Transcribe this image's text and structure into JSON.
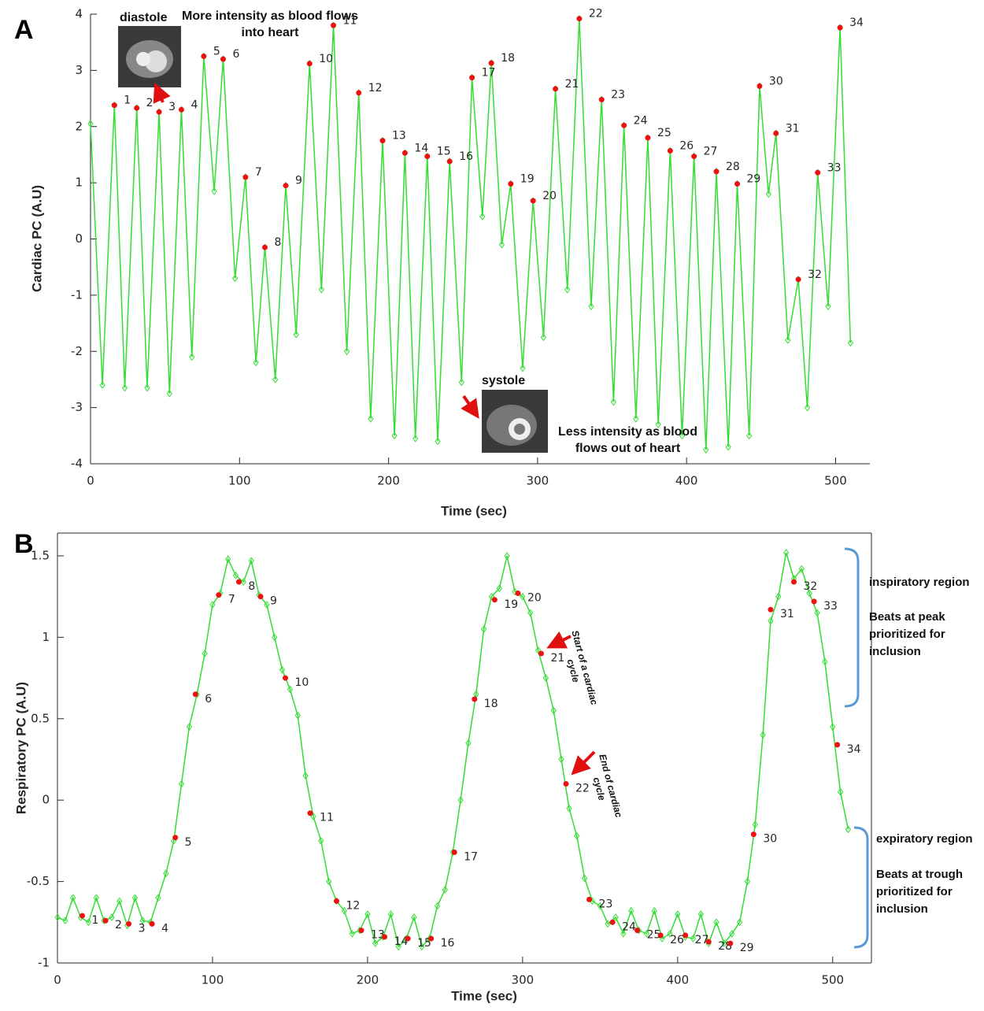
{
  "chart_data": [
    {
      "type": "line",
      "panel_label": "A",
      "xlabel": "Time (sec)",
      "ylabel": "Cardiac PC (A.U)",
      "xlim": [
        0,
        523
      ],
      "ylim": [
        -4,
        4
      ],
      "xticks": [
        0,
        100,
        200,
        300,
        400,
        500
      ],
      "yticks": [
        -4,
        -3,
        -2,
        -1,
        0,
        1,
        2,
        3,
        4
      ],
      "annotations": [
        "diastole",
        "More intensity as blood flows into heart",
        "systole",
        "Less intensity as blood flows out of heart"
      ],
      "series": [
        {
          "color": "#33dd33",
          "marker": "diamond",
          "x": [
            0,
            8,
            16,
            23,
            31,
            38,
            46,
            53,
            61,
            68,
            76,
            83,
            89,
            97,
            104,
            111,
            117,
            124,
            131,
            138,
            147,
            155,
            163,
            172,
            180,
            188,
            196,
            204,
            211,
            218,
            226,
            233,
            241,
            249,
            256,
            263,
            269,
            276,
            282,
            290,
            297,
            304,
            312,
            320,
            328,
            336,
            343,
            351,
            358,
            366,
            374,
            381,
            389,
            397,
            405,
            413,
            420,
            428,
            434,
            442,
            449,
            455,
            460,
            468,
            475,
            481,
            488,
            495,
            503,
            510
          ],
          "values": [
            2.05,
            -2.6,
            2.38,
            -2.65,
            2.33,
            -2.65,
            2.26,
            -2.75,
            2.3,
            -2.1,
            3.25,
            0.85,
            3.2,
            -0.7,
            1.1,
            -2.2,
            -0.15,
            -2.5,
            0.95,
            -1.7,
            3.12,
            -0.9,
            3.8,
            -2.0,
            2.6,
            -3.2,
            1.75,
            -3.5,
            1.53,
            -3.55,
            1.47,
            -3.6,
            1.38,
            -2.55,
            2.87,
            0.4,
            3.13,
            -0.1,
            0.98,
            -2.3,
            0.68,
            -1.75,
            2.67,
            -0.9,
            3.92,
            -1.2,
            2.48,
            -2.9,
            2.02,
            -3.2,
            1.8,
            -3.3,
            1.57,
            -3.5,
            1.47,
            -3.75,
            1.2,
            -3.7,
            0.98,
            -3.5,
            2.72,
            0.8,
            1.88,
            -1.8,
            -0.72,
            -3.0,
            1.18,
            -1.2,
            3.76,
            -1.85
          ]
        },
        {
          "color": "#ee1111",
          "marker": "dot",
          "x": [
            16,
            31,
            46,
            61,
            76,
            89,
            104,
            117,
            131,
            147,
            163,
            180,
            196,
            211,
            226,
            241,
            256,
            269,
            282,
            297,
            312,
            328,
            343,
            358,
            374,
            389,
            405,
            420,
            434,
            449,
            460,
            475,
            488,
            503
          ],
          "values": [
            2.38,
            2.33,
            2.26,
            2.3,
            3.25,
            3.2,
            1.1,
            -0.15,
            0.95,
            3.12,
            3.8,
            2.6,
            1.75,
            1.53,
            1.47,
            1.38,
            2.87,
            3.13,
            0.98,
            0.68,
            2.67,
            3.92,
            2.48,
            2.02,
            1.8,
            1.57,
            1.47,
            1.2,
            0.98,
            2.72,
            1.88,
            -0.72,
            1.18,
            3.76
          ],
          "point_labels": [
            "1",
            "2",
            "3",
            "4",
            "5",
            "6",
            "7",
            "8",
            "9",
            "10",
            "11",
            "12",
            "13",
            "14",
            "15",
            "16",
            "17",
            "18",
            "19",
            "20",
            "21",
            "22",
            "23",
            "24",
            "25",
            "26",
            "27",
            "28",
            "29",
            "30",
            "31",
            "32",
            "33",
            "34"
          ]
        }
      ]
    },
    {
      "type": "line",
      "panel_label": "B",
      "xlabel": "Time (sec)",
      "ylabel": "Respiratory PC (A.U)",
      "xlim": [
        0,
        525
      ],
      "ylim": [
        -1,
        1.64
      ],
      "xticks": [
        0,
        100,
        200,
        300,
        400,
        500
      ],
      "yticks": [
        -1,
        -0.5,
        0,
        0.5,
        1,
        1.5
      ],
      "annotations": [
        "Start of a cardiac cycle",
        "End of cardiac cycle",
        "inspiratory region",
        "Beats at peak prioritized for inclusion",
        "expiratory region",
        "Beats at trough prioritized for inclusion"
      ],
      "series": [
        {
          "color": "#33dd33",
          "marker": "diamond",
          "x": [
            0,
            5,
            10,
            15,
            20,
            25,
            30,
            35,
            40,
            45,
            50,
            55,
            60,
            65,
            70,
            75,
            80,
            85,
            90,
            95,
            100,
            105,
            110,
            115,
            120,
            125,
            130,
            135,
            140,
            145,
            150,
            155,
            160,
            165,
            170,
            175,
            180,
            185,
            190,
            195,
            200,
            205,
            210,
            215,
            220,
            225,
            230,
            235,
            240,
            245,
            250,
            255,
            260,
            265,
            270,
            275,
            280,
            285,
            290,
            295,
            300,
            305,
            310,
            315,
            320,
            325,
            330,
            335,
            340,
            345,
            350,
            355,
            360,
            365,
            370,
            375,
            380,
            385,
            390,
            395,
            400,
            405,
            410,
            415,
            420,
            425,
            430,
            435,
            440,
            445,
            450,
            455,
            460,
            465,
            470,
            475,
            480,
            485,
            490,
            495,
            500,
            505,
            510
          ],
          "values": [
            -0.72,
            -0.74,
            -0.6,
            -0.72,
            -0.75,
            -0.6,
            -0.74,
            -0.72,
            -0.62,
            -0.77,
            -0.6,
            -0.74,
            -0.75,
            -0.6,
            -0.45,
            -0.25,
            0.1,
            0.45,
            0.65,
            0.9,
            1.2,
            1.27,
            1.48,
            1.38,
            1.34,
            1.47,
            1.26,
            1.2,
            1.0,
            0.8,
            0.68,
            0.52,
            0.15,
            -0.1,
            -0.25,
            -0.5,
            -0.62,
            -0.68,
            -0.82,
            -0.8,
            -0.7,
            -0.88,
            -0.84,
            -0.7,
            -0.9,
            -0.85,
            -0.72,
            -0.9,
            -0.85,
            -0.65,
            -0.55,
            -0.32,
            0.0,
            0.35,
            0.65,
            1.05,
            1.25,
            1.3,
            1.5,
            1.28,
            1.25,
            1.15,
            0.92,
            0.75,
            0.55,
            0.25,
            -0.05,
            -0.22,
            -0.48,
            -0.62,
            -0.65,
            -0.76,
            -0.72,
            -0.82,
            -0.68,
            -0.8,
            -0.82,
            -0.68,
            -0.85,
            -0.82,
            -0.7,
            -0.84,
            -0.85,
            -0.7,
            -0.88,
            -0.75,
            -0.88,
            -0.82,
            -0.75,
            -0.5,
            -0.15,
            0.4,
            1.1,
            1.25,
            1.52,
            1.36,
            1.42,
            1.27,
            1.15,
            0.85,
            0.45,
            0.05,
            -0.18
          ]
        },
        {
          "color": "#ee1111",
          "marker": "dot",
          "x": [
            16,
            31,
            46,
            61,
            76,
            89,
            104,
            117,
            131,
            147,
            163,
            180,
            196,
            211,
            226,
            241,
            256,
            269,
            282,
            297,
            312,
            328,
            343,
            358,
            374,
            389,
            405,
            420,
            434,
            449,
            460,
            475,
            488,
            503
          ],
          "values": [
            -0.71,
            -0.74,
            -0.76,
            -0.76,
            -0.23,
            0.65,
            1.26,
            1.34,
            1.25,
            0.75,
            -0.08,
            -0.62,
            -0.8,
            -0.84,
            -0.85,
            -0.85,
            -0.32,
            0.62,
            1.23,
            1.27,
            0.9,
            0.1,
            -0.61,
            -0.75,
            -0.8,
            -0.83,
            -0.83,
            -0.87,
            -0.88,
            -0.21,
            1.17,
            1.34,
            1.22,
            0.34
          ],
          "point_labels": [
            "1",
            "2",
            "3",
            "4",
            "5",
            "6",
            "7",
            "8",
            "9",
            "10",
            "11",
            "12",
            "13",
            "14",
            "15",
            "16",
            "17",
            "18",
            "19",
            "20",
            "21",
            "22",
            "23",
            "24",
            "25",
            "26",
            "27",
            "28",
            "29",
            "30",
            "31",
            "32",
            "33",
            "34"
          ]
        }
      ]
    }
  ]
}
